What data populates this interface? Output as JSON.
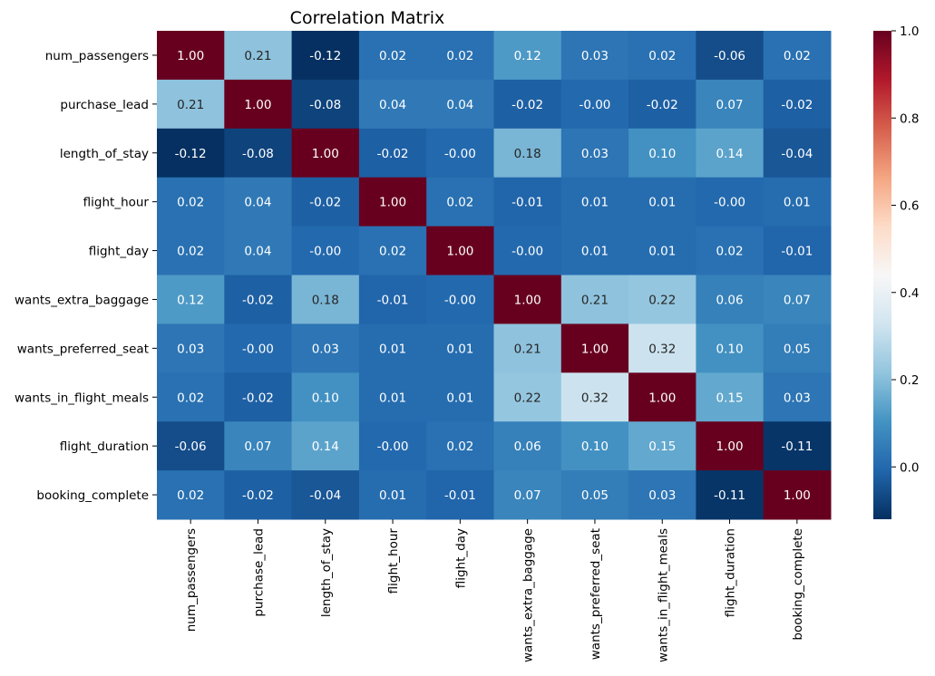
{
  "chart_data": {
    "type": "heatmap",
    "title": "Correlation Matrix",
    "xlabel": "",
    "ylabel": "",
    "labels": [
      "num_passengers",
      "purchase_lead",
      "length_of_stay",
      "flight_hour",
      "flight_day",
      "wants_extra_baggage",
      "wants_preferred_seat",
      "wants_in_flight_meals",
      "flight_duration",
      "booking_complete"
    ],
    "values": [
      [
        1.0,
        0.21,
        -0.12,
        0.02,
        0.02,
        0.12,
        0.03,
        0.02,
        -0.06,
        0.02
      ],
      [
        0.21,
        1.0,
        -0.08,
        0.04,
        0.04,
        -0.02,
        -0.0,
        -0.02,
        0.07,
        -0.02
      ],
      [
        -0.12,
        -0.08,
        1.0,
        -0.02,
        -0.0,
        0.18,
        0.03,
        0.1,
        0.14,
        -0.04
      ],
      [
        0.02,
        0.04,
        -0.02,
        1.0,
        0.02,
        -0.01,
        0.01,
        0.01,
        -0.0,
        0.01
      ],
      [
        0.02,
        0.04,
        -0.0,
        0.02,
        1.0,
        -0.0,
        0.01,
        0.01,
        0.02,
        -0.01
      ],
      [
        0.12,
        -0.02,
        0.18,
        -0.01,
        -0.0,
        1.0,
        0.21,
        0.22,
        0.06,
        0.07
      ],
      [
        0.03,
        -0.0,
        0.03,
        0.01,
        0.01,
        0.21,
        1.0,
        0.32,
        0.1,
        0.05
      ],
      [
        0.02,
        -0.02,
        0.1,
        0.01,
        0.01,
        0.22,
        0.32,
        1.0,
        0.15,
        0.03
      ],
      [
        -0.06,
        0.07,
        0.14,
        -0.0,
        0.02,
        0.06,
        0.1,
        0.15,
        1.0,
        -0.11
      ],
      [
        0.02,
        -0.02,
        -0.04,
        0.01,
        -0.01,
        0.07,
        0.05,
        0.03,
        -0.11,
        1.0
      ]
    ],
    "display_values": [
      [
        "1.00",
        "0.21",
        "-0.12",
        "0.02",
        "0.02",
        "0.12",
        "0.03",
        "0.02",
        "-0.06",
        "0.02"
      ],
      [
        "0.21",
        "1.00",
        "-0.08",
        "0.04",
        "0.04",
        "-0.02",
        "-0.00",
        "-0.02",
        "0.07",
        "-0.02"
      ],
      [
        "-0.12",
        "-0.08",
        "1.00",
        "-0.02",
        "-0.00",
        "0.18",
        "0.03",
        "0.10",
        "0.14",
        "-0.04"
      ],
      [
        "0.02",
        "0.04",
        "-0.02",
        "1.00",
        "0.02",
        "-0.01",
        "0.01",
        "0.01",
        "-0.00",
        "0.01"
      ],
      [
        "0.02",
        "0.04",
        "-0.00",
        "0.02",
        "1.00",
        "-0.00",
        "0.01",
        "0.01",
        "0.02",
        "-0.01"
      ],
      [
        "0.12",
        "-0.02",
        "0.18",
        "-0.01",
        "-0.00",
        "1.00",
        "0.21",
        "0.22",
        "0.06",
        "0.07"
      ],
      [
        "0.03",
        "-0.00",
        "0.03",
        "0.01",
        "0.01",
        "0.21",
        "1.00",
        "0.32",
        "0.10",
        "0.05"
      ],
      [
        "0.02",
        "-0.02",
        "0.10",
        "0.01",
        "0.01",
        "0.22",
        "0.32",
        "1.00",
        "0.15",
        "0.03"
      ],
      [
        "-0.06",
        "0.07",
        "0.14",
        "-0.00",
        "0.02",
        "0.06",
        "0.10",
        "0.15",
        "1.00",
        "-0.11"
      ],
      [
        "0.02",
        "-0.02",
        "-0.04",
        "0.01",
        "-0.01",
        "0.07",
        "0.05",
        "0.03",
        "-0.11",
        "1.00"
      ]
    ],
    "colormap": "RdBu_r",
    "vmin": -0.12,
    "vmax": 1.0,
    "colorbar_ticks": [
      0.0,
      0.2,
      0.4,
      0.6,
      0.8,
      1.0
    ],
    "colorbar_tick_labels": [
      "0.0",
      "0.2",
      "0.4",
      "0.6",
      "0.8",
      "1.0"
    ],
    "colorbar_position": "right",
    "grid": false,
    "annotation_color_dark": "#ffffff",
    "annotation_color_light": "#262626"
  }
}
